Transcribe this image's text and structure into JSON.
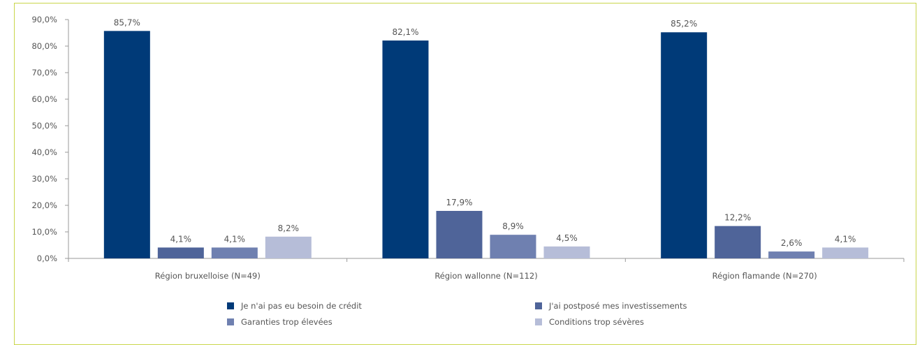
{
  "chart_data": {
    "type": "bar",
    "categories": [
      "Région bruxelloise (N=49)",
      "Région wallonne (N=112)",
      "Région flamande (N=270)"
    ],
    "series": [
      {
        "name": "Je n'ai pas eu besoin de crédit",
        "values": [
          85.7,
          82.1,
          85.2
        ],
        "labels": [
          "85,7%",
          "82,1%",
          "85,2%"
        ],
        "color": "#003a78"
      },
      {
        "name": "J'ai postposé mes investissements",
        "values": [
          4.1,
          17.9,
          12.2
        ],
        "labels": [
          "4,1%",
          "17,9%",
          "12,2%"
        ],
        "color": "#4f6499"
      },
      {
        "name": "Garanties trop élevées",
        "values": [
          4.1,
          8.9,
          2.6
        ],
        "labels": [
          "4,1%",
          "8,9%",
          "2,6%"
        ],
        "color": "#6f80b0"
      },
      {
        "name": "Conditions trop sévères",
        "values": [
          8.2,
          4.5,
          4.1
        ],
        "labels": [
          "8,2%",
          "4,5%",
          "4,1%"
        ],
        "color": "#b6bdd8"
      }
    ],
    "yticks": [
      "0,0%",
      "10,0%",
      "20,0%",
      "30,0%",
      "40,0%",
      "50,0%",
      "60,0%",
      "70,0%",
      "80,0%",
      "90,0%"
    ],
    "ylim": [
      0,
      90
    ],
    "grid": false,
    "legend_position": "bottom"
  }
}
